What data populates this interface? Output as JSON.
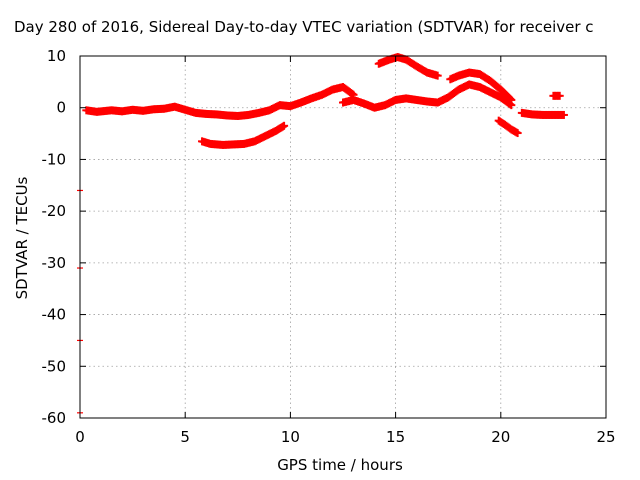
{
  "chart_data": {
    "type": "scatter",
    "title": "Day 280 of 2016, Sidereal Day-to-day VTEC variation (SDTVAR) for receiver c",
    "xlabel": "GPS time / hours",
    "ylabel": "SDTVAR / TECUs",
    "xlim": [
      0,
      25
    ],
    "ylim": [
      -60,
      10
    ],
    "xticks": [
      0,
      5,
      10,
      15,
      20,
      25
    ],
    "yticks": [
      10,
      0,
      -10,
      -20,
      -30,
      -40,
      -50,
      -60
    ],
    "grid": true,
    "series": [
      {
        "color": "#ff0000",
        "x": [
          0.3,
          0.8,
          1.5,
          2.0,
          2.5,
          3.0,
          3.5,
          4.0,
          4.5,
          5.0,
          5.5,
          6.0,
          6.5,
          7.0,
          7.5,
          8.0,
          8.5,
          9.0,
          9.5,
          10.0,
          10.5,
          11.0,
          11.5,
          12.0,
          12.5,
          13.0
        ],
        "y": [
          -0.5,
          -0.8,
          -0.5,
          -0.7,
          -0.4,
          -0.6,
          -0.3,
          -0.2,
          0.2,
          -0.4,
          -1.0,
          -1.2,
          -1.3,
          -1.5,
          -1.6,
          -1.4,
          -1.0,
          -0.5,
          0.5,
          0.3,
          1.0,
          1.8,
          2.5,
          3.5,
          4.0,
          2.5
        ]
      },
      {
        "color": "#ff0000",
        "x": [
          5.8,
          6.2,
          6.8,
          7.3,
          7.8,
          8.3,
          8.8,
          9.3,
          9.7
        ],
        "y": [
          -6.5,
          -7.0,
          -7.2,
          -7.1,
          -7.0,
          -6.5,
          -5.5,
          -4.5,
          -3.5
        ]
      },
      {
        "color": "#ff0000",
        "x": [
          12.5,
          13.0,
          13.5,
          14.0,
          14.5,
          15.0,
          15.5,
          16.0,
          16.5,
          17.0,
          17.5,
          18.0,
          18.5,
          19.0,
          19.5,
          20.0,
          20.5
        ],
        "y": [
          1.0,
          1.5,
          0.8,
          0.0,
          0.5,
          1.5,
          1.8,
          1.5,
          1.2,
          1.0,
          2.0,
          3.5,
          4.5,
          4.0,
          3.0,
          2.0,
          0.5
        ]
      },
      {
        "color": "#ff0000",
        "x": [
          14.2,
          14.7,
          15.1,
          15.5,
          16.0,
          16.5,
          17.0
        ],
        "y": [
          8.5,
          9.3,
          9.8,
          9.3,
          8.0,
          6.8,
          6.2
        ]
      },
      {
        "color": "#ff0000",
        "x": [
          17.6,
          18.0,
          18.5,
          19.0,
          19.5,
          20.0,
          20.5
        ],
        "y": [
          5.5,
          6.2,
          6.8,
          6.5,
          5.2,
          3.5,
          1.5
        ]
      },
      {
        "color": "#ff0000",
        "x": [
          19.9,
          20.2,
          20.5,
          20.8
        ],
        "y": [
          -2.5,
          -3.3,
          -4.2,
          -4.9
        ]
      },
      {
        "color": "#ff0000",
        "x": [
          21.0,
          21.5,
          22.0,
          22.5,
          23.0
        ],
        "y": [
          -1.0,
          -1.3,
          -1.4,
          -1.4,
          -1.4
        ]
      },
      {
        "color": "#ff0000",
        "x": [
          22.5,
          22.8
        ],
        "y": [
          2.3,
          2.3
        ]
      },
      {
        "color": "#ff0000",
        "x": [
          0.0,
          0.0,
          0.0,
          0.0
        ],
        "y": [
          -16,
          -31,
          -45,
          -59
        ]
      }
    ]
  }
}
